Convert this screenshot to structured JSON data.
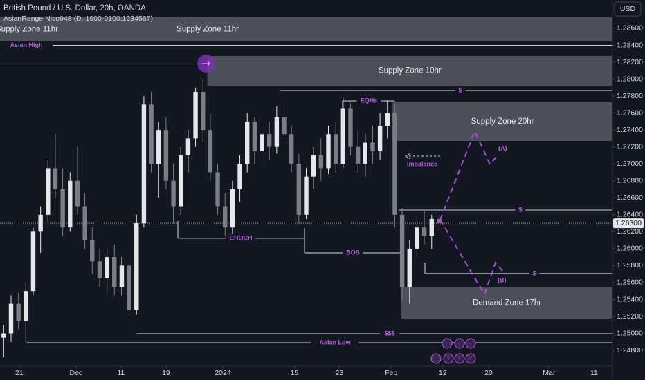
{
  "chart_data": {
    "type": "candlestick",
    "title": "British Pound / U.S. Dollar, 20h, OANDA",
    "subtitle": "AsianRange Nico948 (D, 1900-0100:1234567)",
    "currency": "USD",
    "up_color": "#e6e7ea",
    "down_color": "#7b7d87",
    "open": [
      1.2495,
      1.25,
      1.2535,
      1.2515,
      1.255,
      1.262,
      1.264,
      1.2695,
      1.267,
      1.2625,
      1.268,
      1.265,
      1.261,
      1.2585,
      1.2565,
      1.259,
      1.2555,
      1.258,
      1.2528,
      1.263,
      1.277,
      1.27,
      1.274,
      1.268,
      1.265,
      1.271,
      1.273,
      1.2785,
      1.274,
      1.269,
      1.265,
      1.2625,
      1.267,
      1.27,
      1.275,
      1.2715,
      1.2735,
      1.272,
      1.2755,
      1.2735,
      1.27,
      1.264,
      1.2685,
      1.271,
      1.2695,
      1.2735,
      1.27,
      1.2765,
      1.272,
      1.27,
      1.2725,
      1.2715,
      1.2745,
      1.276,
      1.264,
      1.2555,
      1.26,
      1.2625,
      1.2615,
      1.2635
    ],
    "high": [
      1.251,
      1.2545,
      1.2548,
      1.256,
      1.2625,
      1.265,
      1.2705,
      1.2735,
      1.2695,
      1.269,
      1.272,
      1.2665,
      1.2625,
      1.26,
      1.26,
      1.2605,
      1.259,
      1.259,
      1.264,
      1.278,
      1.2785,
      1.275,
      1.2755,
      1.27,
      1.272,
      1.274,
      1.279,
      1.28,
      1.276,
      1.27,
      1.2665,
      1.268,
      1.271,
      1.276,
      1.2755,
      1.2745,
      1.275,
      1.2768,
      1.2772,
      1.2745,
      1.2712,
      1.2695,
      1.272,
      1.273,
      1.2745,
      1.275,
      1.2778,
      1.2772,
      1.274,
      1.2735,
      1.2745,
      1.276,
      1.2775,
      1.277,
      1.2648,
      1.261,
      1.264,
      1.2645,
      1.264,
      1.264
    ],
    "low": [
      1.2472,
      1.249,
      1.2505,
      1.249,
      1.2545,
      1.2595,
      1.2632,
      1.266,
      1.2615,
      1.262,
      1.264,
      1.26,
      1.257,
      1.2555,
      1.255,
      1.2545,
      1.2545,
      1.252,
      1.2522,
      1.2625,
      1.269,
      1.266,
      1.267,
      1.263,
      1.264,
      1.269,
      1.272,
      1.2725,
      1.268,
      1.264,
      1.2615,
      1.2618,
      1.2655,
      1.269,
      1.27,
      1.2695,
      1.2705,
      1.2712,
      1.2725,
      1.269,
      1.263,
      1.2635,
      1.267,
      1.268,
      1.2688,
      1.269,
      1.2695,
      1.271,
      1.269,
      1.2685,
      1.27,
      1.2705,
      1.273,
      1.2625,
      1.2538,
      1.2535,
      1.259,
      1.2605,
      1.26,
      1.262
    ],
    "close": [
      1.25,
      1.2535,
      1.2515,
      1.255,
      1.262,
      1.264,
      1.2695,
      1.267,
      1.2625,
      1.268,
      1.265,
      1.261,
      1.2585,
      1.2565,
      1.259,
      1.2555,
      1.258,
      1.2528,
      1.263,
      1.277,
      1.27,
      1.274,
      1.268,
      1.265,
      1.271,
      1.273,
      1.2785,
      1.274,
      1.269,
      1.265,
      1.2625,
      1.267,
      1.27,
      1.275,
      1.2715,
      1.2735,
      1.272,
      1.2755,
      1.2735,
      1.27,
      1.264,
      1.2685,
      1.271,
      1.2695,
      1.2735,
      1.27,
      1.2765,
      1.272,
      1.27,
      1.2725,
      1.2715,
      1.2745,
      1.276,
      1.264,
      1.2555,
      1.26,
      1.2625,
      1.2615,
      1.2635,
      1.263
    ],
    "xlim": [
      -0.5,
      82.5
    ],
    "xticks": [
      {
        "value": 2.1,
        "label": "21"
      },
      {
        "value": 9.8,
        "label": "Dec"
      },
      {
        "value": 15.9,
        "label": "11"
      },
      {
        "value": 22,
        "label": "19"
      },
      {
        "value": 29.7,
        "label": "2024"
      },
      {
        "value": 39.4,
        "label": "15"
      },
      {
        "value": 45.5,
        "label": "23"
      },
      {
        "value": 52.5,
        "label": "Feb"
      },
      {
        "value": 59.5,
        "label": "12"
      },
      {
        "value": 65.7,
        "label": "20"
      },
      {
        "value": 73.9,
        "label": "Mar"
      },
      {
        "value": 80,
        "label": "11"
      }
    ],
    "ylim": [
      1.24613,
      1.28934
    ],
    "yticks": [
      {
        "value": 1.286,
        "label": "1.28600"
      },
      {
        "value": 1.284,
        "label": "1.28400"
      },
      {
        "value": 1.282,
        "label": "1.28200"
      },
      {
        "value": 1.28,
        "label": "1.28000"
      },
      {
        "value": 1.278,
        "label": "1.27800"
      },
      {
        "value": 1.276,
        "label": "1.27600"
      },
      {
        "value": 1.274,
        "label": "1.27400"
      },
      {
        "value": 1.272,
        "label": "1.27200"
      },
      {
        "value": 1.27,
        "label": "1.27000"
      },
      {
        "value": 1.268,
        "label": "1.26800"
      },
      {
        "value": 1.266,
        "label": "1.26600"
      },
      {
        "value": 1.264,
        "label": "1.26400"
      },
      {
        "value": 1.262,
        "label": "1.26200"
      },
      {
        "value": 1.26,
        "label": "1.26000"
      },
      {
        "value": 1.258,
        "label": "1.25800"
      },
      {
        "value": 1.256,
        "label": "1.25600"
      },
      {
        "value": 1.254,
        "label": "1.25400"
      },
      {
        "value": 1.252,
        "label": "1.25200"
      },
      {
        "value": 1.25,
        "label": "1.25000"
      },
      {
        "value": 1.248,
        "label": "1.24800"
      }
    ],
    "current_price": {
      "value": 1.263,
      "label": "1.26300"
    },
    "zones": [
      {
        "name": "Supply Zone 11hr",
        "top": 1.2873,
        "bottom": 1.28445,
        "x0": -0.5
      },
      {
        "name": "Supply Zone 10hr",
        "top": 1.28274,
        "bottom": 1.27923,
        "x0": 27.6
      },
      {
        "name": "Supply Zone 20hr",
        "top": 1.27728,
        "bottom": 1.27271,
        "x0": 52.7
      },
      {
        "name": "Demand Zone 17hr",
        "top": 1.25543,
        "bottom": 1.25176,
        "x0": 53.9
      }
    ],
    "levels": [
      {
        "label": "Asian High",
        "value": 1.284,
        "x0": -0.5,
        "x1": 82.5
      },
      {
        "value": 1.2818,
        "x0": -0.5,
        "x1": 27.5
      },
      {
        "label": "$",
        "value": 1.27866,
        "x0": 37.5,
        "x1": 82.5
      },
      {
        "label": "EQHs",
        "value": 1.27744,
        "x0": 45.9,
        "x1": 53
      },
      {
        "label": "CHOCH",
        "value": 1.26122,
        "x0": 23.6,
        "x1": 40.8
      },
      {
        "label": "BOS",
        "value": 1.2595,
        "x0": 40.8,
        "x1": 53.9
      },
      {
        "label": "$",
        "value": 1.26456,
        "x0": 53.5,
        "x1": 82.5
      },
      {
        "label": "$",
        "value": 1.25706,
        "x0": 57.1,
        "x1": 82.5
      },
      {
        "label": "$$$",
        "value": 1.24996,
        "x0": 18,
        "x1": 82.5
      },
      {
        "label": "Asian Low",
        "value": 1.2489,
        "x0": 3.1,
        "x1": 82.5
      }
    ],
    "annotations": [
      "Imbalance",
      "(A)",
      "(B)"
    ]
  }
}
